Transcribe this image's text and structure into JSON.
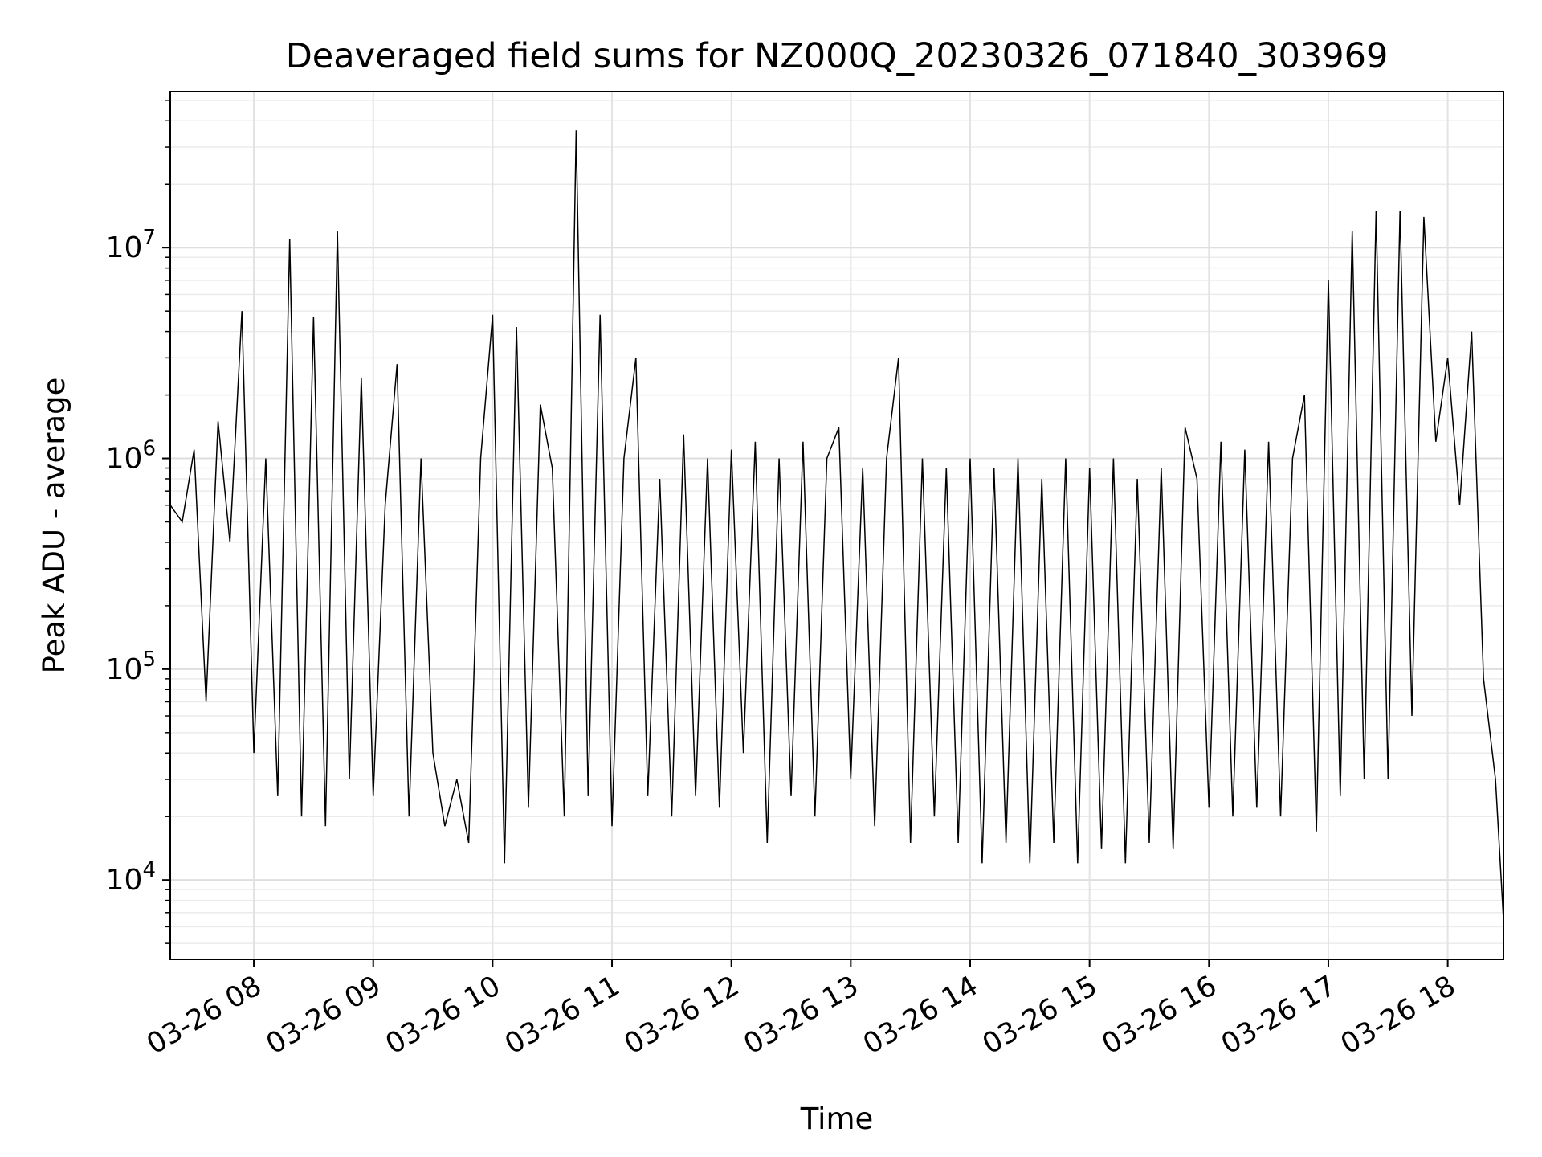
{
  "chart_data": {
    "type": "line",
    "title": "Deaveraged field sums for NZ000Q_20230326_071840_303969",
    "xlabel": "Time",
    "ylabel": "Peak ADU - average",
    "yscale": "log",
    "ylim": [
      4200,
      55000000
    ],
    "xlim": [
      "03-26 07:18",
      "03-26 18:28"
    ],
    "grid": true,
    "x_ticks": [
      "03-26 08",
      "03-26 09",
      "03-26 10",
      "03-26 11",
      "03-26 12",
      "03-26 13",
      "03-26 14",
      "03-26 15",
      "03-26 16",
      "03-26 17",
      "03-26 18"
    ],
    "y_ticks": [
      {
        "value": 10000,
        "base": "10",
        "exp": "4"
      },
      {
        "value": 100000,
        "base": "10",
        "exp": "5"
      },
      {
        "value": 1000000,
        "base": "10",
        "exp": "6"
      },
      {
        "value": 10000000,
        "base": "10",
        "exp": "7"
      }
    ],
    "line_color": "#000000",
    "series": [
      {
        "x": [
          "03-26 07:18",
          "03-26 07:24",
          "03-26 07:30",
          "03-26 07:36",
          "03-26 07:42",
          "03-26 07:48",
          "03-26 07:54",
          "03-26 08:00",
          "03-26 08:06",
          "03-26 08:12",
          "03-26 08:18",
          "03-26 08:24",
          "03-26 08:30",
          "03-26 08:36",
          "03-26 08:42",
          "03-26 08:48",
          "03-26 08:54",
          "03-26 09:00",
          "03-26 09:06",
          "03-26 09:12",
          "03-26 09:18",
          "03-26 09:24",
          "03-26 09:30",
          "03-26 09:36",
          "03-26 09:42",
          "03-26 09:48",
          "03-26 09:54",
          "03-26 10:00",
          "03-26 10:06",
          "03-26 10:12",
          "03-26 10:18",
          "03-26 10:24",
          "03-26 10:30",
          "03-26 10:36",
          "03-26 10:42",
          "03-26 10:48",
          "03-26 10:54",
          "03-26 11:00",
          "03-26 11:06",
          "03-26 11:12",
          "03-26 11:18",
          "03-26 11:24",
          "03-26 11:30",
          "03-26 11:36",
          "03-26 11:42",
          "03-26 11:48",
          "03-26 11:54",
          "03-26 12:00",
          "03-26 12:06",
          "03-26 12:12",
          "03-26 12:18",
          "03-26 12:24",
          "03-26 12:30",
          "03-26 12:36",
          "03-26 12:42",
          "03-26 12:48",
          "03-26 12:54",
          "03-26 13:00",
          "03-26 13:06",
          "03-26 13:12",
          "03-26 13:18",
          "03-26 13:24",
          "03-26 13:30",
          "03-26 13:36",
          "03-26 13:42",
          "03-26 13:48",
          "03-26 13:54",
          "03-26 14:00",
          "03-26 14:06",
          "03-26 14:12",
          "03-26 14:18",
          "03-26 14:24",
          "03-26 14:30",
          "03-26 14:36",
          "03-26 14:42",
          "03-26 14:48",
          "03-26 14:54",
          "03-26 15:00",
          "03-26 15:06",
          "03-26 15:12",
          "03-26 15:18",
          "03-26 15:24",
          "03-26 15:30",
          "03-26 15:36",
          "03-26 15:42",
          "03-26 15:48",
          "03-26 15:54",
          "03-26 16:00",
          "03-26 16:06",
          "03-26 16:12",
          "03-26 16:18",
          "03-26 16:24",
          "03-26 16:30",
          "03-26 16:36",
          "03-26 16:42",
          "03-26 16:48",
          "03-26 16:54",
          "03-26 17:00",
          "03-26 17:06",
          "03-26 17:12",
          "03-26 17:18",
          "03-26 17:24",
          "03-26 17:30",
          "03-26 17:36",
          "03-26 17:42",
          "03-26 17:48",
          "03-26 17:54",
          "03-26 18:00",
          "03-26 18:06",
          "03-26 18:12",
          "03-26 18:18",
          "03-26 18:24",
          "03-26 18:28"
        ],
        "values": [
          600000,
          500000,
          1100000,
          70000,
          1500000,
          400000,
          5000000,
          40000,
          1000000,
          25000,
          11000000,
          20000,
          4700000,
          18000,
          12000000,
          30000,
          2400000,
          25000,
          600000,
          2800000,
          20000,
          1000000,
          40000,
          18000,
          30000,
          15000,
          1000000,
          4800000,
          12000,
          4200000,
          22000,
          1800000,
          900000,
          20000,
          36000000,
          25000,
          4800000,
          18000,
          1000000,
          3000000,
          25000,
          800000,
          20000,
          1300000,
          25000,
          1000000,
          22000,
          1100000,
          40000,
          1200000,
          15000,
          1000000,
          25000,
          1200000,
          20000,
          1000000,
          1400000,
          30000,
          900000,
          18000,
          1000000,
          3000000,
          15000,
          1000000,
          20000,
          900000,
          15000,
          1000000,
          12000,
          900000,
          15000,
          1000000,
          12000,
          800000,
          15000,
          1000000,
          12000,
          900000,
          14000,
          1000000,
          12000,
          800000,
          15000,
          900000,
          14000,
          1400000,
          800000,
          22000,
          1200000,
          20000,
          1100000,
          22000,
          1200000,
          20000,
          1000000,
          2000000,
          17000,
          7000000,
          25000,
          12000000,
          30000,
          15000000,
          30000,
          15000000,
          60000,
          14000000,
          1200000,
          3000000,
          600000,
          4000000,
          90000,
          30000,
          6500
        ]
      }
    ]
  }
}
